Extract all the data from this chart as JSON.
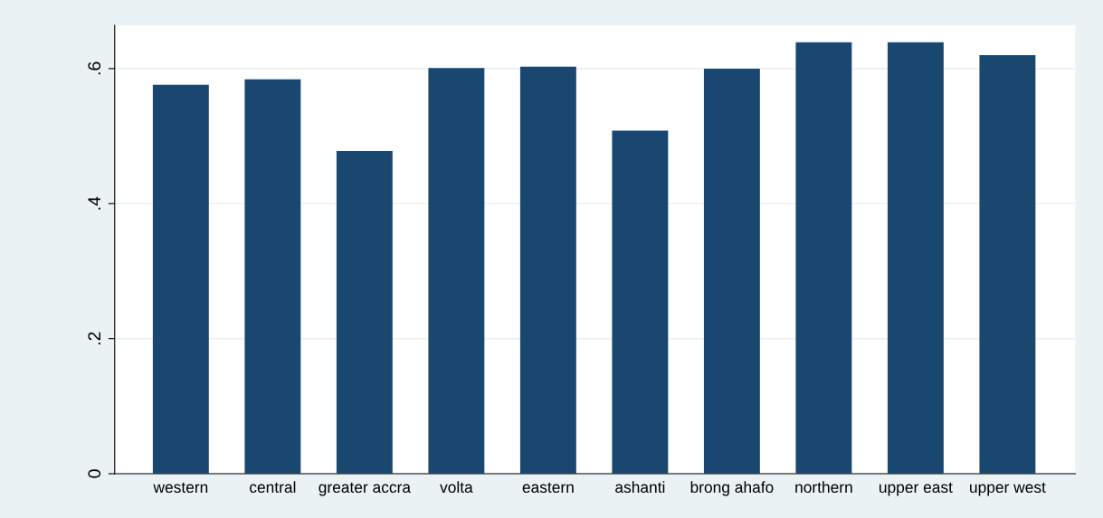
{
  "chart_data": {
    "type": "bar",
    "categories": [
      "western",
      "central",
      "greater accra",
      "volta",
      "eastern",
      "ashanti",
      "brong ahafo",
      "northern",
      "upper east",
      "upper west"
    ],
    "values": [
      0.576,
      0.584,
      0.478,
      0.601,
      0.603,
      0.508,
      0.6,
      0.639,
      0.639,
      0.62
    ],
    "color": "#1a476f",
    "ylim": [
      0,
      0.664
    ],
    "yticks": [
      {
        "value": 0,
        "label": "0"
      },
      {
        "value": 0.2,
        "label": ".2"
      },
      {
        "value": 0.4,
        "label": ".4"
      },
      {
        "value": 0.6,
        "label": ".6"
      }
    ],
    "grid": "y"
  }
}
